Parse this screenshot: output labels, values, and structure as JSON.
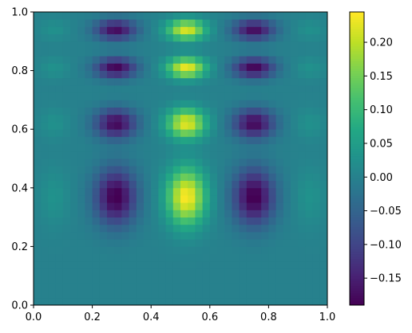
{
  "chart_data": {
    "type": "heatmap",
    "colormap": "viridis",
    "x_range": [
      0,
      1
    ],
    "y_range": [
      0,
      1
    ],
    "x_ticks": [
      "0.0",
      "0.2",
      "0.4",
      "0.6",
      "0.8",
      "1.0"
    ],
    "y_ticks": [
      "0.0",
      "0.2",
      "0.4",
      "0.6",
      "0.8",
      "1.0"
    ],
    "grid_size": [
      40,
      40
    ],
    "value_range": [
      -0.19,
      0.245
    ],
    "colorbar": {
      "ticks": [
        "−0.15",
        "−0.10",
        "−0.05",
        "0.00",
        "0.05",
        "0.10",
        "0.15",
        "0.20"
      ],
      "tick_values": [
        -0.15,
        -0.1,
        -0.05,
        0.0,
        0.05,
        0.1,
        0.15,
        0.2
      ]
    },
    "description_pattern": {
      "x_centers_peaks": [
        0.52
      ],
      "x_centers_troughs": [
        0.28,
        0.75
      ],
      "y_band_centers": [
        0.37,
        0.62,
        0.81,
        0.94
      ],
      "peak_value": 0.245,
      "trough_value": -0.19
    }
  }
}
